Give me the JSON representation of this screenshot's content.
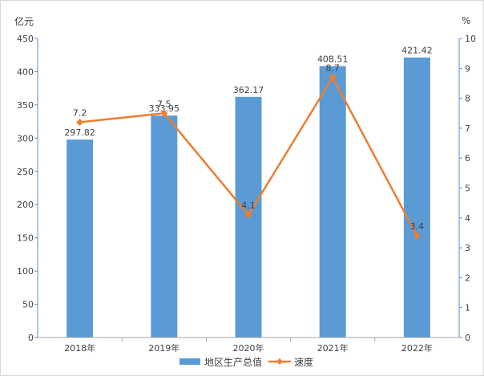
{
  "chart_data": {
    "type": "bar",
    "categories": [
      "2018年",
      "2019年",
      "2020年",
      "2021年",
      "2022年"
    ],
    "series": [
      {
        "name": "地区生产总值",
        "type": "bar",
        "axis": "left",
        "values": [
          297.82,
          333.95,
          362.17,
          408.51,
          421.42
        ],
        "labels": [
          "297.82",
          "333.95",
          "362.17",
          "408.51",
          "421.42"
        ]
      },
      {
        "name": "速度",
        "type": "line",
        "axis": "right",
        "values": [
          7.2,
          7.5,
          4.1,
          8.7,
          3.4
        ],
        "labels": [
          "7.2",
          "7.5",
          "4.1",
          "8.7",
          "3.4"
        ]
      }
    ],
    "y_left": {
      "unit": "亿元",
      "lim": [
        0,
        450
      ],
      "ticks": [
        "0",
        "50",
        "100",
        "150",
        "200",
        "250",
        "300",
        "350",
        "400",
        "450"
      ]
    },
    "y_right": {
      "unit": "%",
      "lim": [
        0,
        10
      ],
      "ticks": [
        "0",
        "1",
        "2",
        "3",
        "4",
        "5",
        "6",
        "7",
        "8",
        "9",
        "10"
      ]
    },
    "grid": false,
    "legend": "bottom-center",
    "colors": {
      "bar": "#5b9bd5",
      "line": "#ed7d31",
      "axis": "#5b8fc7",
      "text": "#404040"
    }
  }
}
